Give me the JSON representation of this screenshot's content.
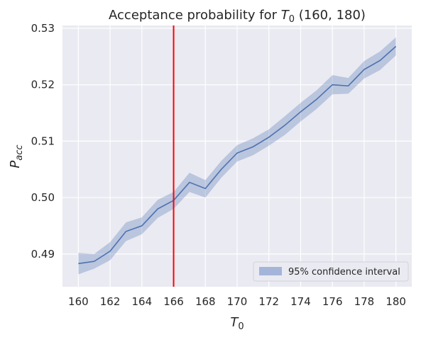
{
  "chart_data": {
    "type": "line",
    "title": {
      "prefix": "Acceptance probability for ",
      "var": "T",
      "sub": "0",
      "suffix": " (160, 180)"
    },
    "xlabel": {
      "var": "T",
      "sub": "0"
    },
    "ylabel": {
      "var": "P",
      "sub": "acc"
    },
    "xlim": [
      159.0,
      181.0
    ],
    "ylim": [
      0.4842,
      0.5305
    ],
    "xticks": [
      160,
      162,
      164,
      166,
      168,
      170,
      172,
      174,
      176,
      178,
      180
    ],
    "xtick_labels": [
      "160",
      "162",
      "164",
      "166",
      "168",
      "170",
      "172",
      "174",
      "176",
      "178",
      "180"
    ],
    "yticks": [
      0.49,
      0.5,
      0.51,
      0.52,
      0.53
    ],
    "ytick_labels": [
      "0.49",
      "0.50",
      "0.51",
      "0.52",
      "0.53"
    ],
    "grid": true,
    "legend_position": "bottom-right",
    "x": [
      160,
      161,
      162,
      163,
      164,
      165,
      166,
      167,
      168,
      169,
      170,
      171,
      172,
      173,
      174,
      175,
      176,
      177,
      178,
      179,
      180
    ],
    "series": [
      {
        "values": [
          0.4883,
          0.4887,
          0.4905,
          0.494,
          0.495,
          0.498,
          0.4995,
          0.5027,
          0.5016,
          0.505,
          0.5079,
          0.509,
          0.5107,
          0.5128,
          0.5152,
          0.5174,
          0.52,
          0.5198,
          0.5227,
          0.5243,
          0.5268
        ],
        "lower": [
          0.4864,
          0.4874,
          0.4889,
          0.4923,
          0.4935,
          0.4964,
          0.498,
          0.501,
          0.5,
          0.5035,
          0.5064,
          0.5075,
          0.5092,
          0.5111,
          0.5135,
          0.5157,
          0.5183,
          0.5184,
          0.5211,
          0.5226,
          0.5252
        ],
        "upper": [
          0.4902,
          0.49,
          0.4921,
          0.4956,
          0.4965,
          0.4996,
          0.501,
          0.5044,
          0.5031,
          0.5065,
          0.5093,
          0.5105,
          0.5121,
          0.5144,
          0.5168,
          0.519,
          0.5217,
          0.5212,
          0.5242,
          0.5259,
          0.5284
        ],
        "color": "#4c72b0"
      }
    ],
    "band_legend_label": "95% confidence interval",
    "band_color": "#a4b5d9",
    "vline": {
      "x": 166,
      "color": "#ff0000"
    },
    "background": "#eaeaf2",
    "grid_color": "#ffffff"
  }
}
